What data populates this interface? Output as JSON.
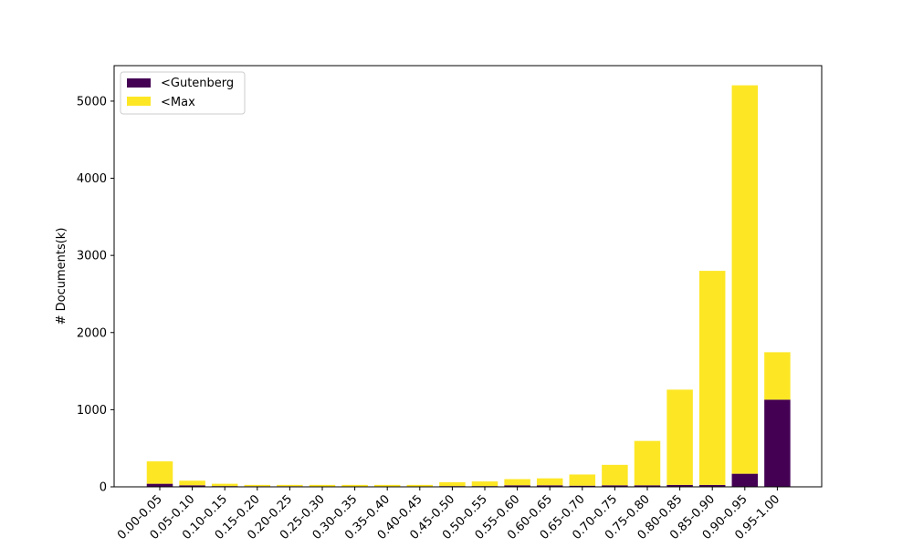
{
  "chart_data": {
    "type": "bar",
    "stacked": true,
    "title": "",
    "xlabel": "",
    "ylabel": "# Documents(k)",
    "ylim": [
      0,
      5460
    ],
    "yticks": [
      0,
      1000,
      2000,
      3000,
      4000,
      5000
    ],
    "legend_position": "top-left",
    "grid": false,
    "categories": [
      "0.00-0.05",
      "0.05-0.10",
      "0.10-0.15",
      "0.15-0.20",
      "0.20-0.25",
      "0.25-0.30",
      "0.30-0.35",
      "0.35-0.40",
      "0.40-0.45",
      "0.45-0.50",
      "0.50-0.55",
      "0.55-0.60",
      "0.60-0.65",
      "0.65-0.70",
      "0.70-0.75",
      "0.75-0.80",
      "0.80-0.85",
      "0.85-0.90",
      "0.90-0.95",
      "0.95-1.00"
    ],
    "series": [
      {
        "name": "<Gutenberg",
        "color": "#440154",
        "values": [
          40,
          20,
          10,
          8,
          8,
          5,
          5,
          5,
          5,
          10,
          10,
          20,
          20,
          15,
          20,
          20,
          25,
          25,
          170,
          1130
        ]
      },
      {
        "name": "<Max",
        "color": "#fde725",
        "values": [
          290,
          60,
          30,
          17,
          17,
          20,
          20,
          20,
          20,
          50,
          60,
          80,
          90,
          145,
          265,
          575,
          1235,
          2775,
          5035,
          615
        ]
      }
    ]
  }
}
